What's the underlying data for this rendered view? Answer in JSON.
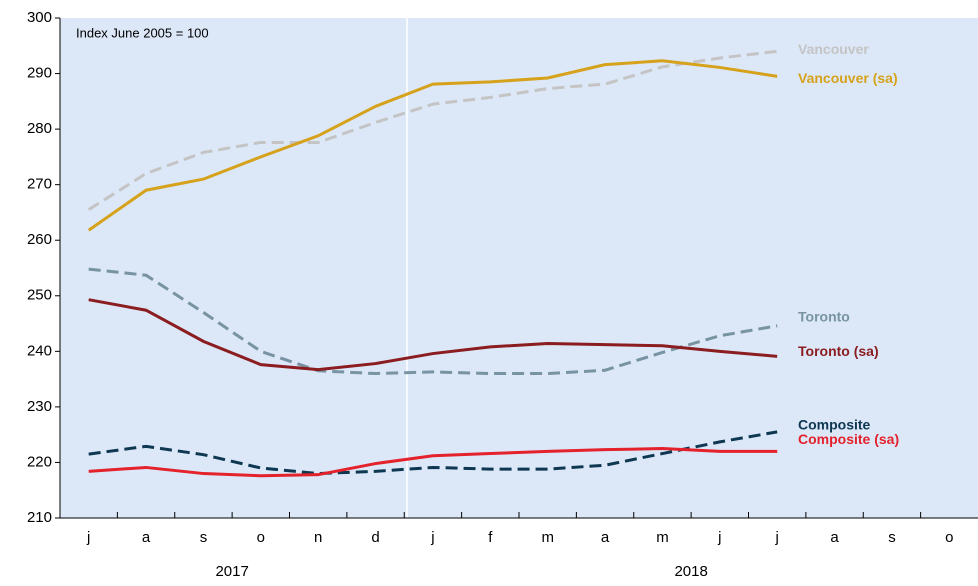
{
  "chart_data": {
    "type": "line",
    "annotation": "Index June 2005 = 100",
    "categories": [
      "j",
      "a",
      "s",
      "o",
      "n",
      "d",
      "j",
      "f",
      "m",
      "a",
      "m",
      "j",
      "j",
      "a",
      "s",
      "o"
    ],
    "years": [
      {
        "label": "2017",
        "span": 6
      },
      {
        "label": "2018",
        "span": 10
      }
    ],
    "ylim": [
      210,
      300
    ],
    "yticks": [
      210,
      220,
      230,
      240,
      250,
      260,
      270,
      280,
      290,
      300
    ],
    "series": [
      {
        "name": "Vancouver",
        "color": "#c4c4c4",
        "dashed": true,
        "values": [
          265.5,
          272,
          275.8,
          277.6,
          277.6,
          281.2,
          284.5,
          285.7,
          287.3,
          288.1,
          291.2,
          292.8,
          294,
          null,
          null,
          null
        ]
      },
      {
        "name": "Vancouver (sa)",
        "color": "#d6a21c",
        "dashed": false,
        "values": [
          261.8,
          269,
          271,
          275,
          278.8,
          284.1,
          288.1,
          288.5,
          289.2,
          291.6,
          292.3,
          291.1,
          289.5,
          null,
          null,
          null
        ]
      },
      {
        "name": "Toronto",
        "color": "#7893a1",
        "dashed": true,
        "values": [
          254.8,
          253.7,
          247,
          240,
          236.5,
          236,
          236.3,
          236,
          236,
          236.6,
          239.8,
          242.8,
          244.6,
          null,
          null,
          null
        ]
      },
      {
        "name": "Toronto (sa)",
        "color": "#8b1c1f",
        "dashed": false,
        "values": [
          249.3,
          247.4,
          241.8,
          237.6,
          236.7,
          237.8,
          239.6,
          240.8,
          241.4,
          241.2,
          241,
          240,
          239.1,
          null,
          null,
          null
        ]
      },
      {
        "name": "Composite",
        "color": "#0e3852",
        "dashed": true,
        "values": [
          221.5,
          222.9,
          221.4,
          219,
          218,
          218.4,
          219.1,
          218.8,
          218.8,
          219.5,
          221.6,
          223.7,
          225.5,
          null,
          null,
          null
        ]
      },
      {
        "name": "Composite (sa)",
        "color": "#e3222b",
        "dashed": false,
        "values": [
          218.4,
          219.1,
          218,
          217.6,
          217.8,
          219.8,
          221.2,
          221.6,
          222,
          222.3,
          222.5,
          222,
          222,
          null,
          null,
          null
        ]
      }
    ]
  }
}
